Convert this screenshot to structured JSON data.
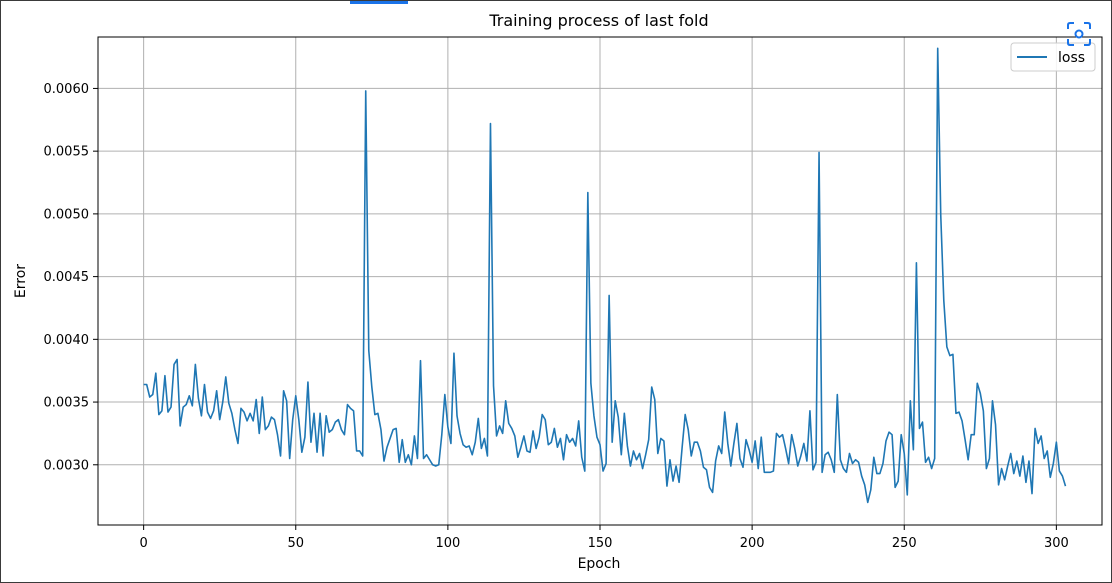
{
  "chart_data": {
    "type": "line",
    "title": "Training process of last fold",
    "xlabel": "Epoch",
    "ylabel": "Error",
    "xlim": [
      -15,
      315
    ],
    "ylim": [
      0.00252,
      0.00641
    ],
    "xticks": [
      0,
      50,
      100,
      150,
      200,
      250,
      300
    ],
    "yticks": [
      0.003,
      0.0035,
      0.004,
      0.0045,
      0.005,
      0.0055,
      0.006
    ],
    "ytick_labels": [
      "0.0030",
      "0.0035",
      "0.0040",
      "0.0045",
      "0.0050",
      "0.0055",
      "0.0060"
    ],
    "grid": true,
    "legend_position": "top-right",
    "series": [
      {
        "name": "loss",
        "color": "#1f77b4",
        "x_start": 0,
        "x_step": 1,
        "values": [
          0.00364,
          0.00364,
          0.00354,
          0.00356,
          0.00373,
          0.0034,
          0.00343,
          0.00371,
          0.00342,
          0.00346,
          0.0038,
          0.00384,
          0.00331,
          0.00346,
          0.00348,
          0.00355,
          0.00347,
          0.0038,
          0.00353,
          0.00339,
          0.00364,
          0.00342,
          0.00337,
          0.00343,
          0.00359,
          0.00336,
          0.0035,
          0.0037,
          0.00349,
          0.00341,
          0.00328,
          0.00317,
          0.00345,
          0.00342,
          0.00335,
          0.00341,
          0.00335,
          0.00352,
          0.00325,
          0.00354,
          0.00328,
          0.00331,
          0.00338,
          0.00336,
          0.00324,
          0.00307,
          0.00359,
          0.00351,
          0.00305,
          0.00336,
          0.00355,
          0.00336,
          0.0031,
          0.00322,
          0.00366,
          0.00318,
          0.00341,
          0.0031,
          0.00341,
          0.00307,
          0.00339,
          0.00326,
          0.00328,
          0.00334,
          0.00336,
          0.00328,
          0.00324,
          0.00348,
          0.00345,
          0.00343,
          0.00311,
          0.00311,
          0.00307,
          0.00598,
          0.00391,
          0.00362,
          0.0034,
          0.00341,
          0.00328,
          0.00303,
          0.00314,
          0.00321,
          0.00328,
          0.00329,
          0.00302,
          0.0032,
          0.00302,
          0.00308,
          0.003,
          0.00323,
          0.00305,
          0.00383,
          0.00305,
          0.00308,
          0.00304,
          0.003,
          0.00299,
          0.003,
          0.00324,
          0.00356,
          0.0033,
          0.00317,
          0.00389,
          0.00339,
          0.00325,
          0.00316,
          0.00314,
          0.00315,
          0.00308,
          0.00318,
          0.00337,
          0.00313,
          0.00321,
          0.00307,
          0.00572,
          0.00363,
          0.00323,
          0.00331,
          0.00325,
          0.00351,
          0.00333,
          0.00329,
          0.00323,
          0.00306,
          0.00314,
          0.00323,
          0.00311,
          0.0031,
          0.00327,
          0.00313,
          0.00322,
          0.0034,
          0.00336,
          0.00316,
          0.00318,
          0.00329,
          0.00314,
          0.00321,
          0.00304,
          0.00324,
          0.00318,
          0.00321,
          0.00315,
          0.00335,
          0.00306,
          0.00295,
          0.00517,
          0.00365,
          0.00339,
          0.00322,
          0.00316,
          0.00295,
          0.00301,
          0.00435,
          0.00318,
          0.00351,
          0.00338,
          0.00308,
          0.00341,
          0.00315,
          0.00299,
          0.00311,
          0.00304,
          0.00309,
          0.00297,
          0.00308,
          0.0032,
          0.00362,
          0.00352,
          0.00309,
          0.00321,
          0.00319,
          0.00283,
          0.00304,
          0.00287,
          0.00299,
          0.00286,
          0.00314,
          0.0034,
          0.00328,
          0.00307,
          0.00318,
          0.00318,
          0.00311,
          0.00298,
          0.00296,
          0.00282,
          0.00278,
          0.00303,
          0.00315,
          0.00309,
          0.00342,
          0.00317,
          0.00299,
          0.00317,
          0.00333,
          0.00305,
          0.00298,
          0.0032,
          0.00312,
          0.00302,
          0.00319,
          0.00297,
          0.00322,
          0.00294,
          0.00294,
          0.00294,
          0.00295,
          0.00325,
          0.00322,
          0.00324,
          0.00313,
          0.00301,
          0.00324,
          0.00313,
          0.00299,
          0.00307,
          0.00317,
          0.00303,
          0.00343,
          0.00296,
          0.00302,
          0.00549,
          0.00294,
          0.00308,
          0.0031,
          0.00304,
          0.00294,
          0.00356,
          0.00304,
          0.00297,
          0.00294,
          0.00309,
          0.00301,
          0.00304,
          0.00302,
          0.00291,
          0.00284,
          0.0027,
          0.0028,
          0.00306,
          0.00293,
          0.00293,
          0.00301,
          0.00319,
          0.00326,
          0.00324,
          0.00282,
          0.00287,
          0.00324,
          0.00309,
          0.00276,
          0.00351,
          0.00312,
          0.00461,
          0.00329,
          0.00334,
          0.00302,
          0.00306,
          0.00297,
          0.00305,
          0.00632,
          0.00499,
          0.00431,
          0.00394,
          0.00387,
          0.00388,
          0.00341,
          0.00342,
          0.00335,
          0.0032,
          0.00304,
          0.00324,
          0.00324,
          0.00365,
          0.00357,
          0.00343,
          0.00297,
          0.00305,
          0.00351,
          0.00332,
          0.00284,
          0.00297,
          0.00288,
          0.00299,
          0.00309,
          0.00293,
          0.00303,
          0.00291,
          0.00307,
          0.00286,
          0.00303,
          0.00277,
          0.00329,
          0.00317,
          0.00323,
          0.00305,
          0.00311,
          0.0029,
          0.00301,
          0.00318,
          0.00295,
          0.00291,
          0.00283
        ]
      }
    ]
  },
  "toolbar": {
    "expand_icon": "focus-frame-icon"
  }
}
